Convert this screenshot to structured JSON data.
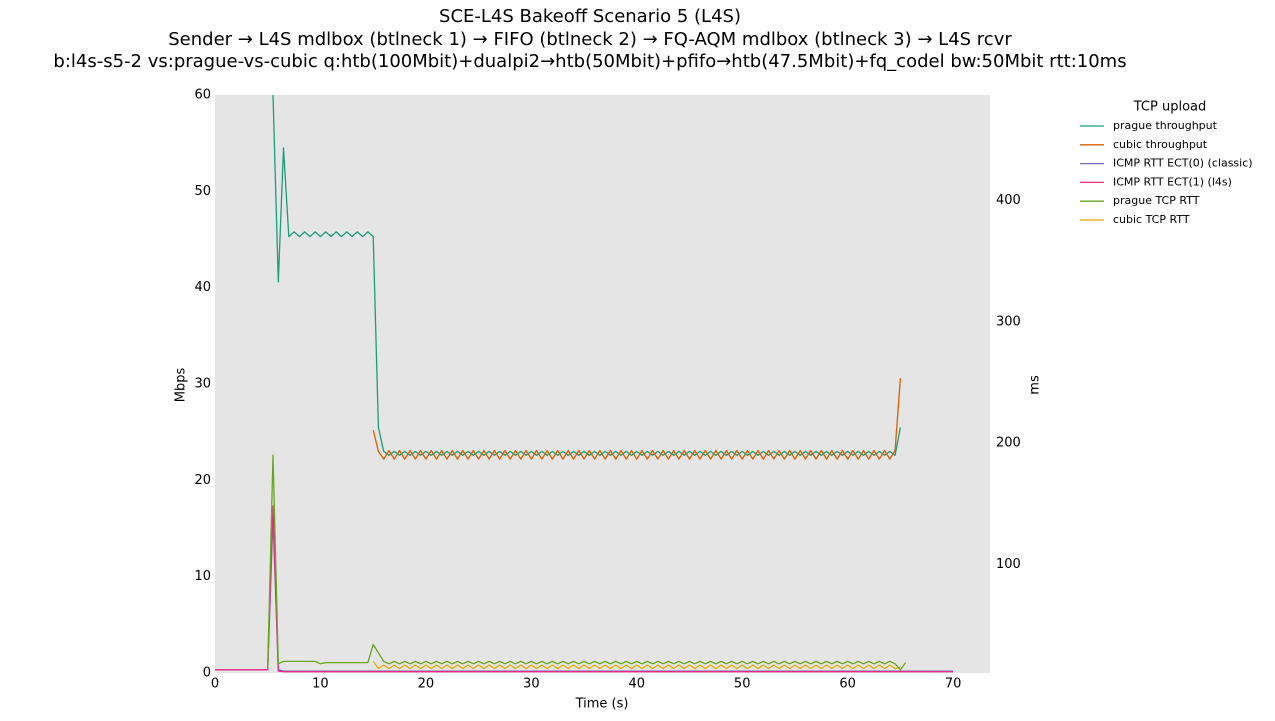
{
  "chart_data": {
    "type": "line",
    "title": "SCE-L4S Bakeoff Scenario 5 (L4S)",
    "subtitle": "Sender → L4S mdlbox (btlneck 1) → FIFO (btlneck 2) → FQ-AQM mdlbox (btlneck 3) → L4S rcvr",
    "subtitle2": "b:l4s-s5-2 vs:prague-vs-cubic q:htb(100Mbit)+dualpi2→htb(50Mbit)+pfifo→htb(47.5Mbit)+fq_codel bw:50Mbit rtt:10ms",
    "x_label": "Time (s)",
    "y_label": "Mbps",
    "y2_label": "ms",
    "legend_title": "TCP upload",
    "legend_position": "outside-right",
    "background": "#e5e5e5",
    "xlim": [
      0,
      73.5
    ],
    "xticks": [
      0,
      10,
      20,
      30,
      40,
      50,
      60,
      70
    ],
    "ylim": [
      0,
      60
    ],
    "yticks": [
      0,
      10,
      20,
      30,
      40,
      50,
      60
    ],
    "y2lim": [
      10.4,
      487
    ],
    "y2ticks": [
      100,
      200,
      300,
      400
    ],
    "x": [
      0,
      0.5,
      1,
      1.5,
      2,
      2.5,
      3,
      3.5,
      4,
      4.5,
      5,
      5.5,
      6,
      6.5,
      7,
      7.5,
      8,
      8.5,
      9,
      9.5,
      10,
      10.5,
      11,
      11.5,
      12,
      12.5,
      13,
      13.5,
      14,
      14.5,
      15,
      15.5,
      16,
      16.5,
      17,
      17.5,
      18,
      18.5,
      19,
      19.5,
      20,
      20.5,
      21,
      21.5,
      22,
      22.5,
      23,
      23.5,
      24,
      24.5,
      25,
      25.5,
      26,
      26.5,
      27,
      27.5,
      28,
      28.5,
      29,
      29.5,
      30,
      30.5,
      31,
      31.5,
      32,
      32.5,
      33,
      33.5,
      34,
      34.5,
      35,
      35.5,
      36,
      36.5,
      37,
      37.5,
      38,
      38.5,
      39,
      39.5,
      40,
      40.5,
      41,
      41.5,
      42,
      42.5,
      43,
      43.5,
      44,
      44.5,
      45,
      45.5,
      46,
      46.5,
      47,
      47.5,
      48,
      48.5,
      49,
      49.5,
      50,
      50.5,
      51,
      51.5,
      52,
      52.5,
      53,
      53.5,
      54,
      54.5,
      55,
      55.5,
      56,
      56.5,
      57,
      57.5,
      58,
      58.5,
      59,
      59.5,
      60,
      60.5,
      61,
      61.5,
      62,
      62.5,
      63,
      63.5,
      64,
      64.5,
      65,
      65.5,
      66,
      66.5,
      67,
      67.5,
      68,
      68.5,
      69,
      69.5,
      70
    ],
    "series": [
      {
        "name": "prague throughput",
        "color": "#1b9e77",
        "axis": "y",
        "values": [
          null,
          null,
          null,
          null,
          null,
          null,
          null,
          null,
          null,
          null,
          null,
          60,
          40.6,
          54.5,
          45.3,
          45.8,
          45.3,
          45.8,
          45.3,
          45.8,
          45.3,
          45.8,
          45.3,
          45.8,
          45.3,
          45.8,
          45.3,
          45.8,
          45.3,
          45.8,
          45.3,
          25.5,
          23,
          22.6,
          23.0,
          22.6,
          23.0,
          22.6,
          23.0,
          22.6,
          23.0,
          22.6,
          23.0,
          22.6,
          23.0,
          22.6,
          23.0,
          22.6,
          23.0,
          22.6,
          23.0,
          22.6,
          23.0,
          22.6,
          23.0,
          22.6,
          23.0,
          22.6,
          23.0,
          22.6,
          23.0,
          22.6,
          23.0,
          22.6,
          23.0,
          22.6,
          23.0,
          22.6,
          23.0,
          22.6,
          23.0,
          22.6,
          23.0,
          22.6,
          23.0,
          22.6,
          23.0,
          22.6,
          23.0,
          22.6,
          23.0,
          22.6,
          23.0,
          22.6,
          23.0,
          22.6,
          23.0,
          22.6,
          23.0,
          22.6,
          23.0,
          22.6,
          23.0,
          22.6,
          23.0,
          22.6,
          23.0,
          22.6,
          23.0,
          22.6,
          23.0,
          22.6,
          23.0,
          22.6,
          23.0,
          22.6,
          23.0,
          22.6,
          23.0,
          22.6,
          23.0,
          22.6,
          23.0,
          22.6,
          23.0,
          22.6,
          23.0,
          22.6,
          23.0,
          22.6,
          23.0,
          22.6,
          23.0,
          22.6,
          23.0,
          22.6,
          23.0,
          22.6,
          23.0,
          22.6,
          25.5,
          null,
          null,
          null,
          null,
          null,
          null,
          null,
          null,
          null,
          null
        ]
      },
      {
        "name": "cubic throughput",
        "color": "#d95f02",
        "axis": "y",
        "values": [
          null,
          null,
          null,
          null,
          null,
          null,
          null,
          null,
          null,
          null,
          null,
          null,
          null,
          null,
          null,
          null,
          null,
          null,
          null,
          null,
          null,
          null,
          null,
          null,
          null,
          null,
          null,
          null,
          null,
          null,
          25.2,
          23,
          22.2,
          23.1,
          22.2,
          23.1,
          22.2,
          23.1,
          22.2,
          23.1,
          22.2,
          23.1,
          22.2,
          23.1,
          22.2,
          23.1,
          22.2,
          23.1,
          22.2,
          23.1,
          22.2,
          23.1,
          22.2,
          23.1,
          22.2,
          23.1,
          22.2,
          23.1,
          22.2,
          23.1,
          22.2,
          23.1,
          22.2,
          23.1,
          22.2,
          23.1,
          22.2,
          23.1,
          22.2,
          23.1,
          22.2,
          23.1,
          22.2,
          23.1,
          22.2,
          23.1,
          22.2,
          23.1,
          22.2,
          23.1,
          22.2,
          23.1,
          22.2,
          23.1,
          22.2,
          23.1,
          22.2,
          23.1,
          22.2,
          23.1,
          22.2,
          23.1,
          22.2,
          23.1,
          22.2,
          23.1,
          22.2,
          23.1,
          22.2,
          23.1,
          22.2,
          23.1,
          22.2,
          23.1,
          22.2,
          23.1,
          22.2,
          23.1,
          22.2,
          23.1,
          22.2,
          23.1,
          22.2,
          23.1,
          22.2,
          23.1,
          22.2,
          23.1,
          22.2,
          23.1,
          22.2,
          23.1,
          22.2,
          23.1,
          22.2,
          23.1,
          22.2,
          23.1,
          22.2,
          23.1,
          30.6,
          null,
          null,
          null,
          null,
          null,
          null,
          null,
          null,
          null,
          null
        ]
      },
      {
        "name": "ICMP RTT ECT(0) (classic)",
        "color": "#7570b3",
        "axis": "y2",
        "values": [
          13,
          13,
          13,
          13,
          13,
          13,
          13,
          13,
          13,
          13,
          13,
          138,
          13,
          12,
          12,
          12,
          12,
          12,
          12,
          12,
          12,
          12,
          12,
          12,
          12,
          12,
          12,
          12,
          12,
          12,
          12,
          12,
          12,
          12,
          12,
          12,
          12,
          12,
          12,
          12,
          12,
          12,
          12,
          12,
          12,
          12,
          12,
          12,
          12,
          12,
          12,
          12,
          12,
          12,
          12,
          12,
          12,
          12,
          12,
          12,
          12,
          12,
          12,
          12,
          12,
          12,
          12,
          12,
          12,
          12,
          12,
          12,
          12,
          12,
          12,
          12,
          12,
          12,
          12,
          12,
          12,
          12,
          12,
          12,
          12,
          12,
          12,
          12,
          12,
          12,
          12,
          12,
          12,
          12,
          12,
          12,
          12,
          12,
          12,
          12,
          12,
          12,
          12,
          12,
          12,
          12,
          12,
          12,
          12,
          12,
          12,
          12,
          12,
          12,
          12,
          12,
          12,
          12,
          12,
          12,
          12,
          12,
          12,
          12,
          12,
          12,
          12,
          12,
          12,
          12,
          12,
          12,
          12,
          12,
          12,
          12,
          12,
          12,
          12,
          12,
          12
        ]
      },
      {
        "name": "ICMP RTT ECT(1) (l4s)",
        "color": "#e7298a",
        "axis": "y2",
        "values": [
          13,
          13,
          13,
          13,
          13,
          13,
          13,
          13,
          13,
          13,
          13,
          148,
          12,
          11.5,
          11.5,
          11.5,
          11.5,
          11.5,
          11.5,
          11.5,
          11.5,
          11.5,
          11.5,
          11.5,
          11.5,
          11.5,
          11.5,
          11.5,
          11.5,
          11.5,
          11.5,
          11.5,
          11.5,
          11.5,
          11.5,
          11.5,
          11.5,
          11.5,
          11.5,
          11.5,
          11.5,
          11.5,
          11.5,
          11.5,
          11.5,
          11.5,
          11.5,
          11.5,
          11.5,
          11.5,
          11.5,
          11.5,
          11.5,
          11.5,
          11.5,
          11.5,
          11.5,
          11.5,
          11.5,
          11.5,
          11.5,
          11.5,
          11.5,
          11.5,
          11.5,
          11.5,
          11.5,
          11.5,
          11.5,
          11.5,
          11.5,
          11.5,
          11.5,
          11.5,
          11.5,
          11.5,
          11.5,
          11.5,
          11.5,
          11.5,
          11.5,
          11.5,
          11.5,
          11.5,
          11.5,
          11.5,
          11.5,
          11.5,
          11.5,
          11.5,
          11.5,
          11.5,
          11.5,
          11.5,
          11.5,
          11.5,
          11.5,
          11.5,
          11.5,
          11.5,
          11.5,
          11.5,
          11.5,
          11.5,
          11.5,
          11.5,
          11.5,
          11.5,
          11.5,
          11.5,
          11.5,
          11.5,
          11.5,
          11.5,
          11.5,
          11.5,
          11.5,
          11.5,
          11.5,
          11.5,
          11.5,
          11.5,
          11.5,
          11.5,
          11.5,
          11.5,
          11.5,
          11.5,
          11.5,
          11.5,
          11.5,
          11.5,
          11.5,
          11.5,
          11.5,
          11.5,
          11.5,
          11.5,
          11.5,
          11.5,
          11.5
        ]
      },
      {
        "name": "prague TCP RTT",
        "color": "#66a61e",
        "axis": "y2",
        "values": [
          null,
          null,
          null,
          null,
          null,
          null,
          null,
          null,
          null,
          null,
          14,
          190,
          18,
          20,
          20,
          20,
          20,
          20,
          20,
          20,
          18,
          19,
          19,
          19,
          19,
          19,
          19,
          19,
          19,
          19,
          34,
          27,
          20,
          18,
          20,
          18,
          20,
          18,
          20,
          18,
          20,
          18,
          20,
          18,
          20,
          18,
          20,
          18,
          20,
          18,
          20,
          18,
          20,
          18,
          20,
          18,
          20,
          18,
          20,
          18,
          20,
          18,
          20,
          18,
          20,
          18,
          20,
          18,
          20,
          18,
          20,
          18,
          20,
          18,
          20,
          18,
          20,
          18,
          20,
          18,
          20,
          18,
          20,
          18,
          20,
          18,
          20,
          18,
          20,
          18,
          20,
          18,
          20,
          18,
          20,
          18,
          20,
          18,
          20,
          18,
          20,
          18,
          20,
          18,
          20,
          18,
          20,
          18,
          20,
          18,
          20,
          18,
          20,
          18,
          20,
          18,
          20,
          18,
          20,
          18,
          20,
          18,
          20,
          18,
          20,
          18,
          20,
          18,
          20,
          18,
          13,
          19,
          null,
          null,
          null,
          null,
          null,
          null,
          null,
          null,
          null
        ]
      },
      {
        "name": "cubic TCP RTT",
        "color": "#e6ab02",
        "axis": "y2",
        "values": [
          null,
          null,
          null,
          null,
          null,
          null,
          null,
          null,
          null,
          null,
          null,
          null,
          null,
          null,
          null,
          null,
          null,
          null,
          null,
          null,
          null,
          null,
          null,
          null,
          null,
          null,
          null,
          null,
          null,
          null,
          20,
          14,
          17,
          14,
          17,
          14,
          17,
          14,
          17,
          14,
          17,
          14,
          17,
          14,
          17,
          14,
          17,
          14,
          17,
          14,
          17,
          14,
          17,
          14,
          17,
          14,
          17,
          14,
          17,
          14,
          17,
          14,
          17,
          14,
          17,
          14,
          17,
          14,
          17,
          14,
          17,
          14,
          17,
          14,
          17,
          14,
          17,
          14,
          17,
          14,
          17,
          14,
          17,
          14,
          17,
          14,
          17,
          14,
          17,
          14,
          17,
          14,
          17,
          14,
          17,
          14,
          17,
          14,
          17,
          14,
          17,
          14,
          17,
          14,
          17,
          14,
          17,
          14,
          17,
          14,
          17,
          14,
          17,
          14,
          17,
          14,
          17,
          14,
          17,
          14,
          17,
          14,
          17,
          14,
          17,
          14,
          17,
          14,
          17,
          14,
          15,
          null,
          null,
          null,
          null,
          null,
          null,
          null,
          null,
          null,
          null
        ]
      }
    ]
  }
}
